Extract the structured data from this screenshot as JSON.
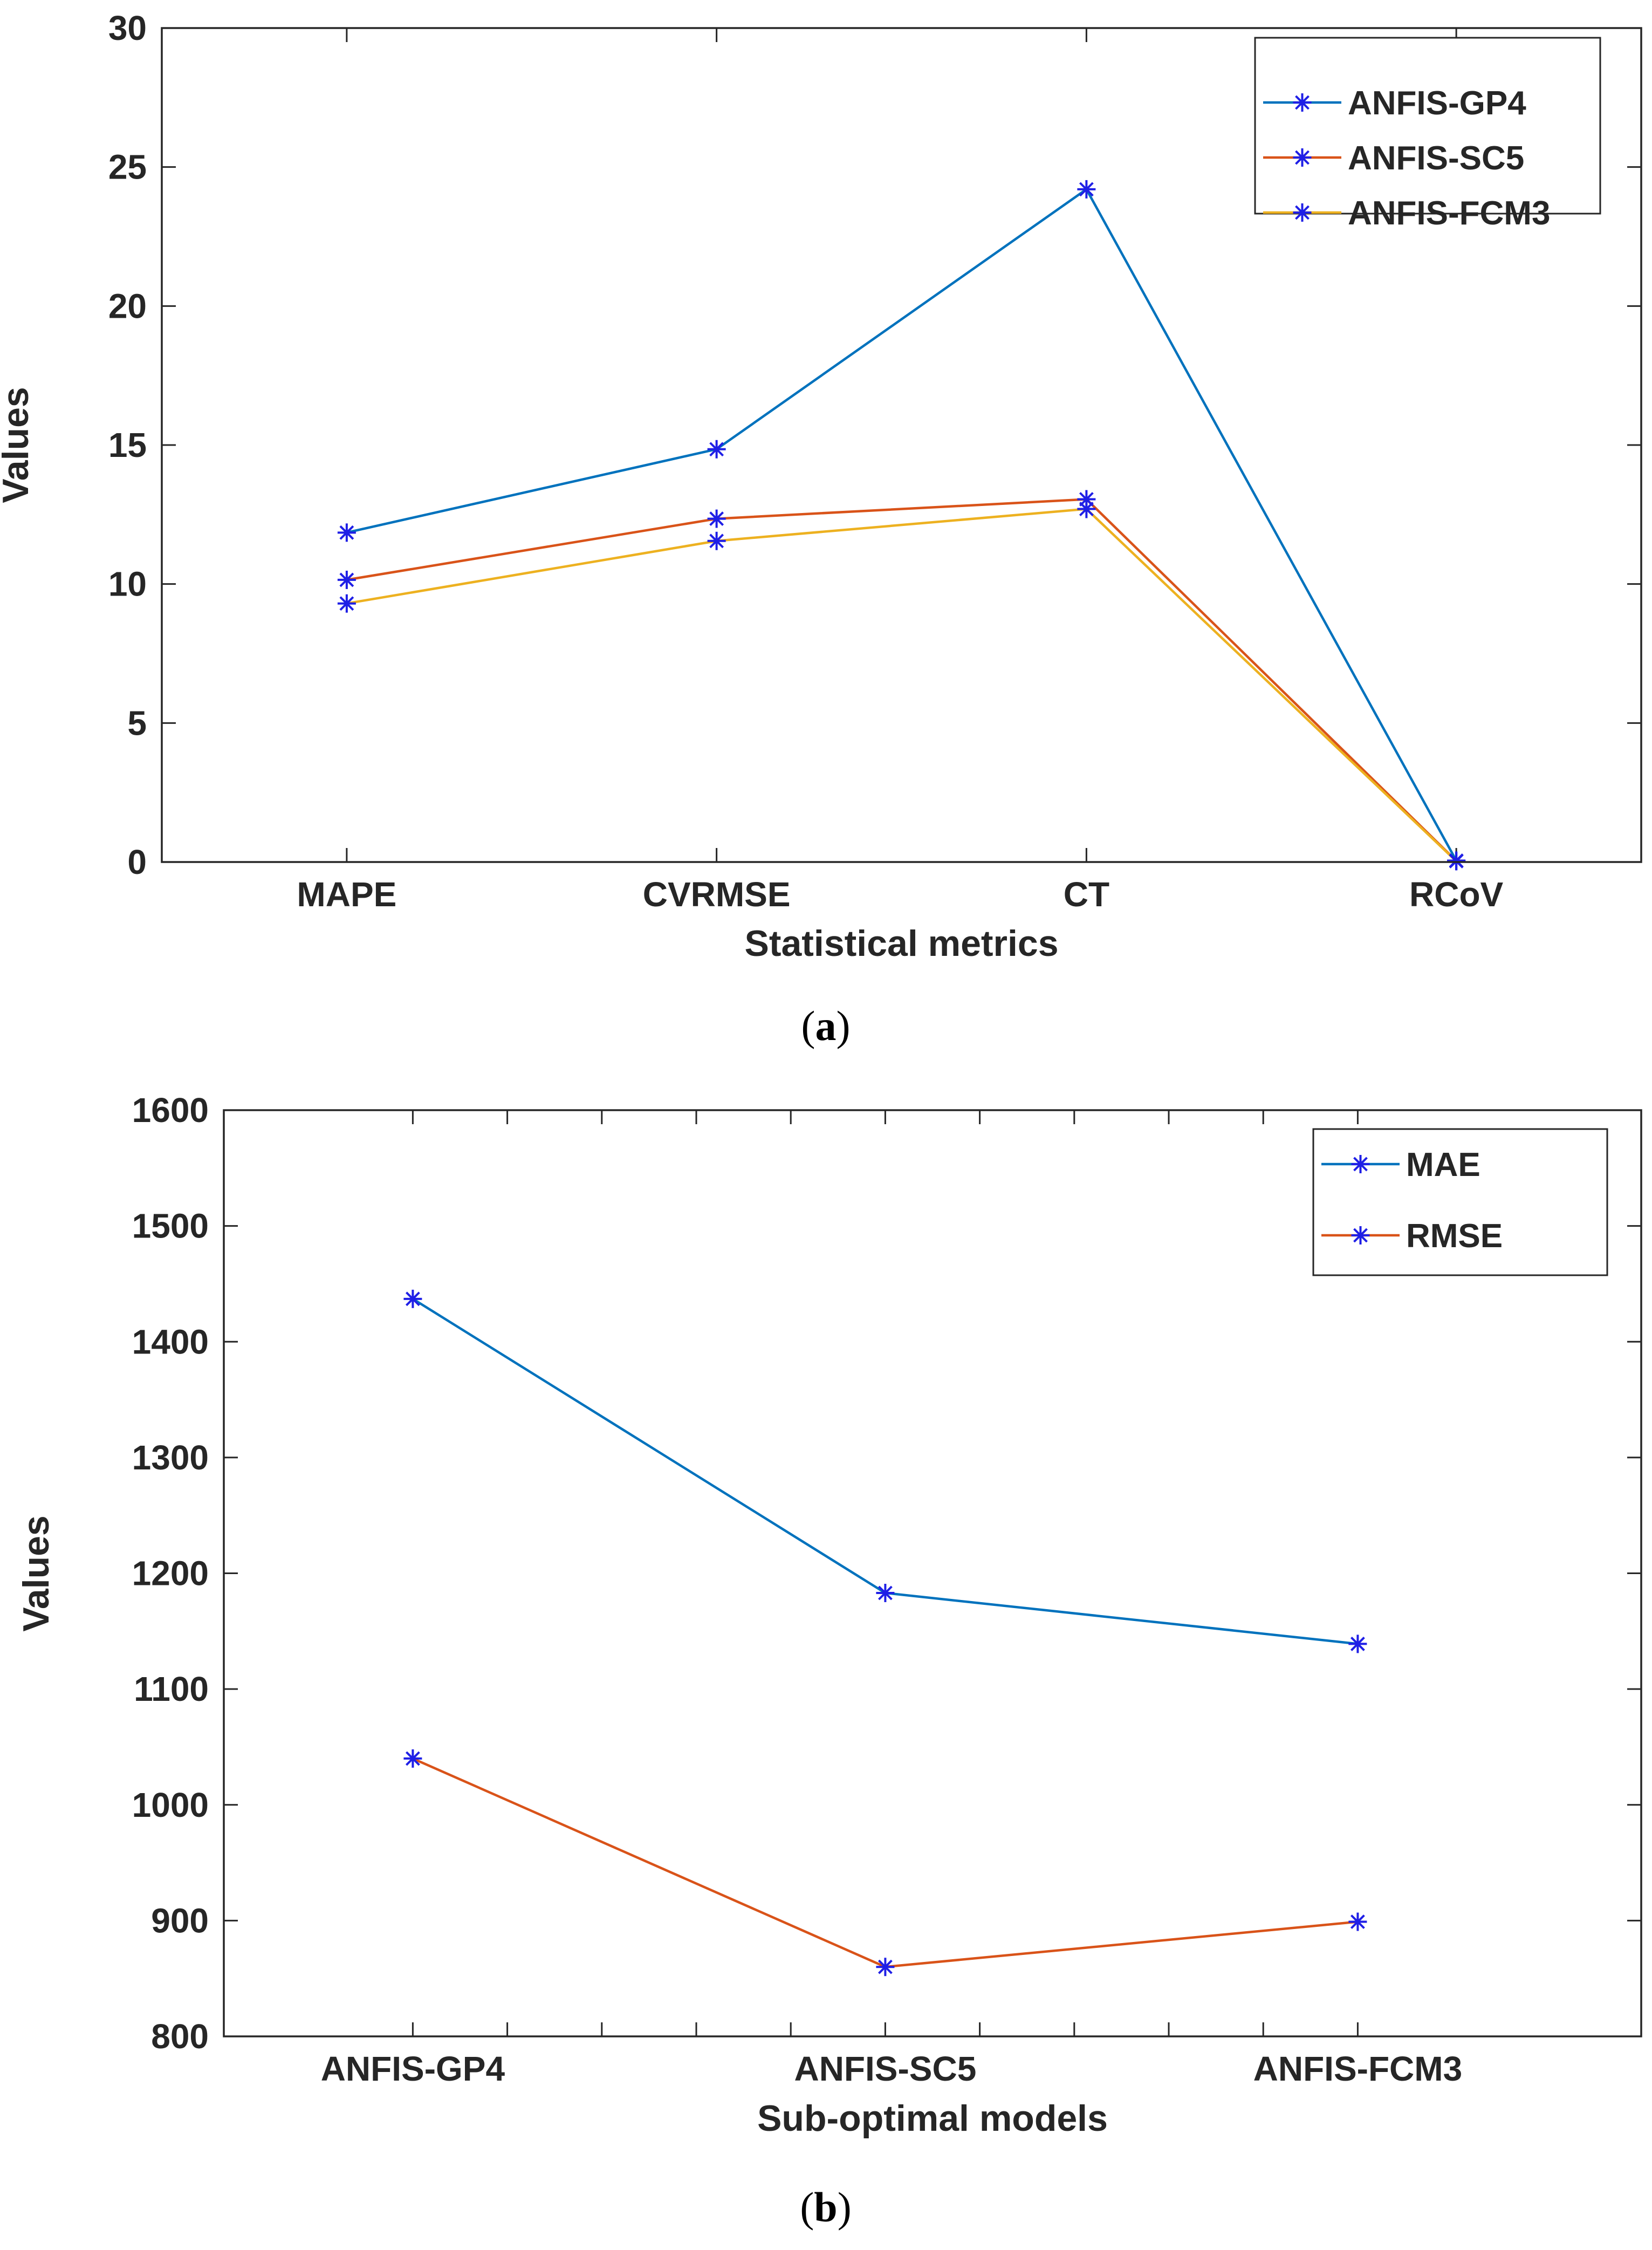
{
  "chart_data": [
    {
      "type": "line",
      "caption": "a",
      "categories": [
        "MAPE",
        "CVRMSE",
        "CT",
        "RCoV"
      ],
      "xlabel": "Statistical metrics",
      "ylabel": "Values",
      "ylim": [
        0,
        30
      ],
      "yticks": [
        "0",
        "5",
        "10",
        "15",
        "20",
        "25",
        "30"
      ],
      "legend_position": "top-right",
      "marker_color": "#1f1fe6",
      "series": [
        {
          "name": "ANFIS-GP4",
          "color": "#0072BD",
          "values": [
            11.85,
            14.85,
            24.2,
            0.05
          ]
        },
        {
          "name": "ANFIS-SC5",
          "color": "#D95319",
          "values": [
            10.15,
            12.35,
            13.05,
            0.04
          ]
        },
        {
          "name": "ANFIS-FCM3",
          "color": "#EDB120",
          "values": [
            9.3,
            11.55,
            12.7,
            0.03
          ]
        }
      ]
    },
    {
      "type": "line",
      "caption": "b",
      "categories": [
        "ANFIS-GP4",
        "ANFIS-SC5",
        "ANFIS-FCM3"
      ],
      "xlabel": "Sub-optimal models",
      "ylabel": "Values",
      "ylim": [
        800,
        1600
      ],
      "yticks": [
        "800",
        "900",
        "1000",
        "1100",
        "1200",
        "1300",
        "1400",
        "1500",
        "1600"
      ],
      "legend_position": "top-right",
      "marker_color": "#1f1fe6",
      "series": [
        {
          "name": "MAE",
          "color": "#0072BD",
          "values": [
            1437,
            1183,
            1139
          ]
        },
        {
          "name": "RMSE",
          "color": "#D95319",
          "values": [
            1040,
            860,
            899
          ]
        }
      ]
    }
  ]
}
